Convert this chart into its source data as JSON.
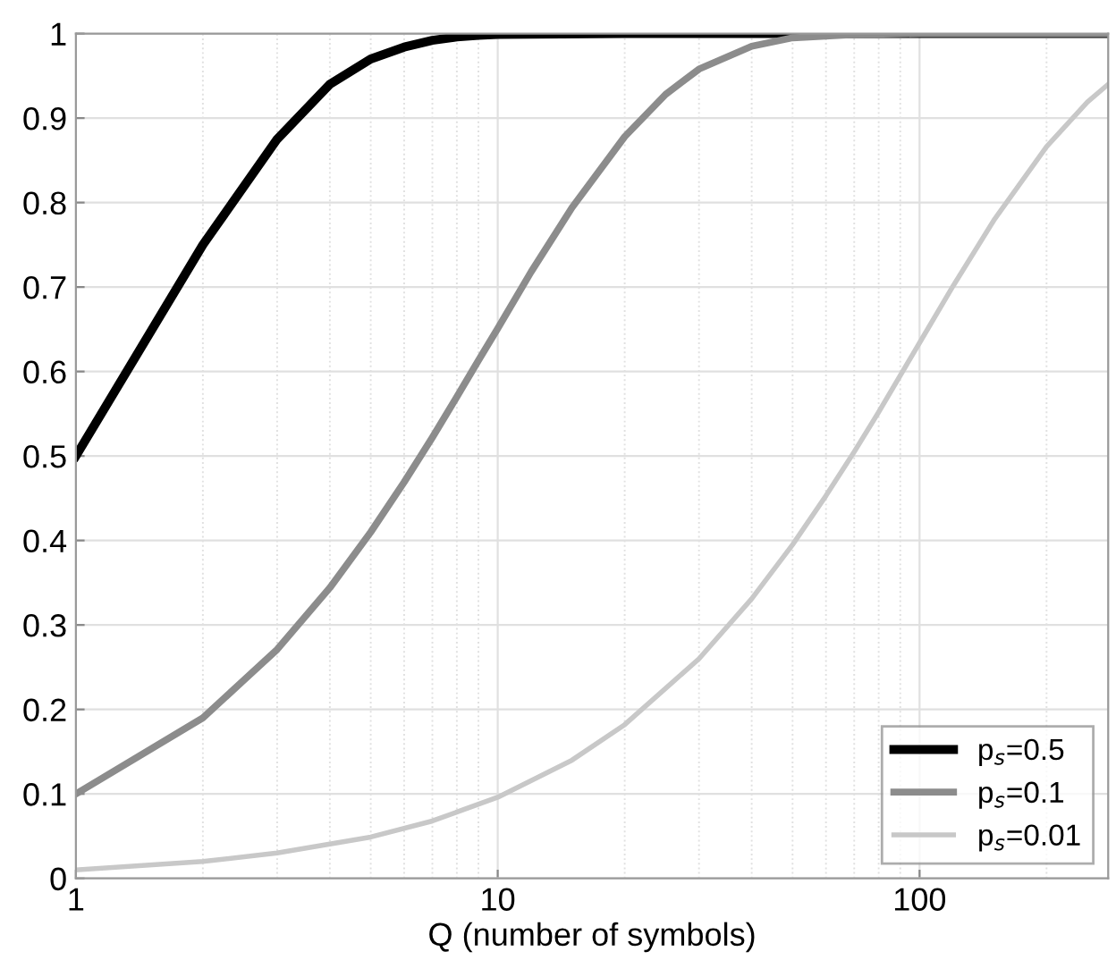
{
  "chart_data": {
    "type": "line",
    "xlabel": "Q (number of symbols)",
    "log": "x",
    "xlim": [
      1,
      280
    ],
    "xticks": [
      1,
      10,
      100
    ],
    "ylim": [
      0,
      1
    ],
    "yticks": [
      0,
      0.1,
      0.2,
      0.3,
      0.4,
      0.5,
      0.6,
      0.7,
      0.8,
      0.9,
      1
    ],
    "grid": true,
    "legend": "bottom right",
    "marker": "none",
    "line_style": "solid",
    "series": [
      {
        "name": "p$_{s}$=0.5",
        "color": "#000000",
        "x": [
          1,
          2,
          3,
          4,
          5,
          6,
          7,
          8,
          9,
          10,
          20,
          280
        ],
        "values": [
          0.5,
          0.75,
          0.875,
          0.94,
          0.97,
          0.984,
          0.992,
          0.996,
          0.998,
          0.999,
          1,
          1
        ]
      },
      {
        "name": "p$_{s}$=0.1",
        "color": "#8c8c8c",
        "x": [
          1,
          2,
          3,
          4,
          5,
          6,
          7,
          8,
          9,
          10,
          12,
          15,
          20,
          25,
          30,
          40,
          50,
          70,
          100,
          280
        ],
        "values": [
          0.1,
          0.19,
          0.271,
          0.344,
          0.41,
          0.469,
          0.522,
          0.57,
          0.613,
          0.651,
          0.718,
          0.794,
          0.878,
          0.928,
          0.958,
          0.985,
          0.995,
          0.999,
          1,
          1
        ]
      },
      {
        "name": "p$_{s}$=0.01",
        "color": "#c8c8c8",
        "x": [
          1,
          2,
          3,
          5,
          7,
          10,
          15,
          20,
          30,
          40,
          50,
          60,
          70,
          80,
          100,
          120,
          150,
          200,
          250,
          280
        ],
        "values": [
          0.01,
          0.02,
          0.03,
          0.049,
          0.068,
          0.096,
          0.14,
          0.182,
          0.26,
          0.331,
          0.395,
          0.453,
          0.505,
          0.552,
          0.634,
          0.701,
          0.779,
          0.866,
          0.919,
          0.94
        ]
      }
    ]
  }
}
